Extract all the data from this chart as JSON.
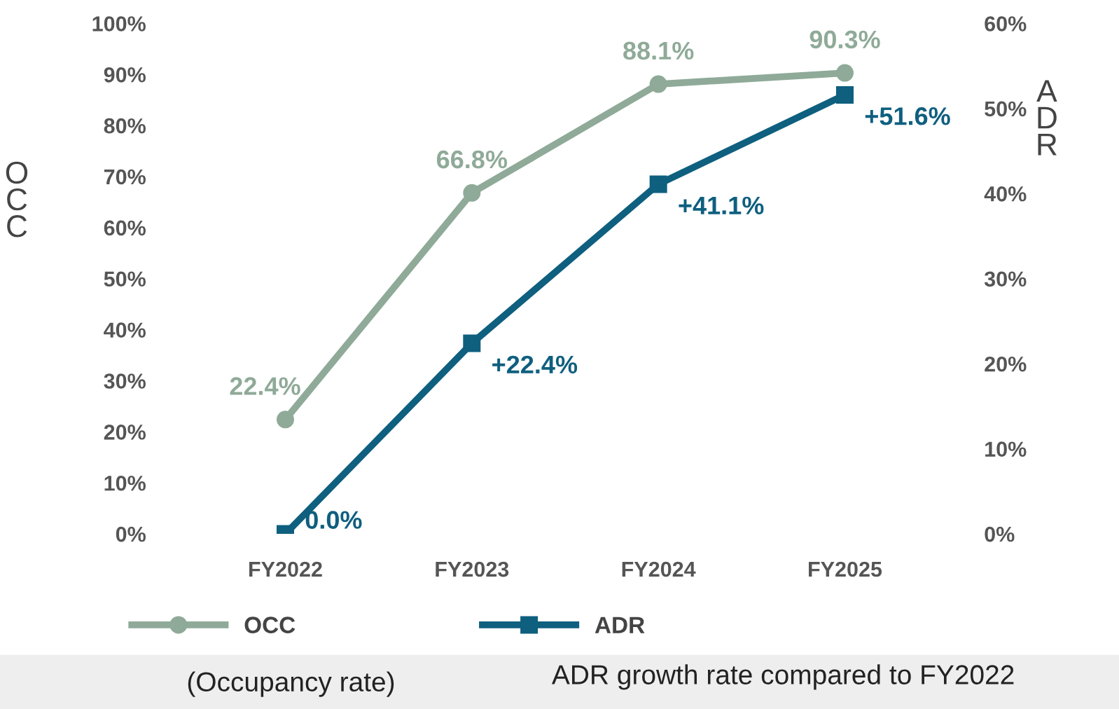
{
  "chart_data": {
    "type": "line",
    "categories": [
      "FY2022",
      "FY2023",
      "FY2024",
      "FY2025"
    ],
    "series": [
      {
        "name": "OCC",
        "color": "#8faa98",
        "values": [
          22.4,
          66.8,
          88.1,
          90.3
        ],
        "marker": "circle",
        "value_labels": [
          "22.4%",
          "66.8%",
          "88.1%",
          "90.3%"
        ]
      },
      {
        "name": "ADR",
        "color": "#0f5f7f",
        "axis": "y2",
        "values": [
          0.0,
          22.4,
          41.1,
          51.6
        ],
        "marker": "square",
        "value_labels": [
          "0.0%",
          "+22.4%",
          "+41.1%",
          "+51.6%"
        ]
      }
    ],
    "ylabel": "OCC",
    "y2label": "ADR",
    "ylim": [
      0,
      100
    ],
    "yticks": [
      {
        "value": 0,
        "label": "0%"
      },
      {
        "value": 10,
        "label": "10%"
      },
      {
        "value": 20,
        "label": "20%"
      },
      {
        "value": 30,
        "label": "30%"
      },
      {
        "value": 40,
        "label": "40%"
      },
      {
        "value": 50,
        "label": "50%"
      },
      {
        "value": 60,
        "label": "60%"
      },
      {
        "value": 70,
        "label": "70%"
      },
      {
        "value": 80,
        "label": "80%"
      },
      {
        "value": 90,
        "label": "90%"
      },
      {
        "value": 100,
        "label": "100%"
      }
    ],
    "y2lim": [
      0,
      60
    ],
    "y2ticks": [
      {
        "value": 0,
        "label": "0%"
      },
      {
        "value": 10,
        "label": "10%"
      },
      {
        "value": 20,
        "label": "20%"
      },
      {
        "value": 30,
        "label": "30%"
      },
      {
        "value": 40,
        "label": "40%"
      },
      {
        "value": 50,
        "label": "50%"
      },
      {
        "value": 60,
        "label": "60%"
      }
    ],
    "grid": false,
    "legend": "bottom",
    "annotations": [
      "(Occupancy rate)",
      "ADR growth rate compared to FY2022"
    ]
  }
}
